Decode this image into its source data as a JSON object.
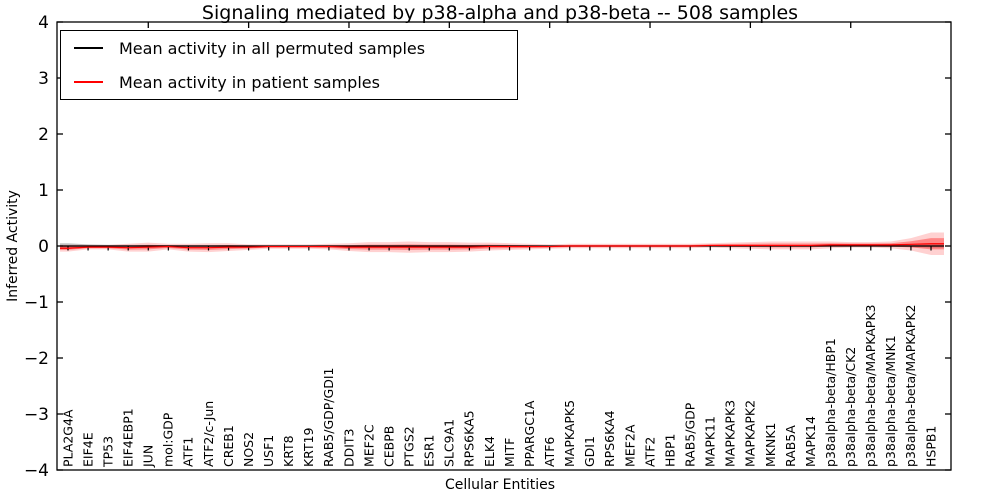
{
  "title": "Signaling mediated by p38-alpha and p38-beta -- 508 samples",
  "xlabel": "Cellular Entities",
  "ylabel": "Inferred Activity",
  "legend": {
    "items": [
      {
        "label": "Mean activity in all permuted samples",
        "color": "#000000"
      },
      {
        "label": "Mean activity in patient samples",
        "color": "#ff0000"
      }
    ]
  },
  "chart_data": {
    "type": "line",
    "title": "Signaling mediated by p38-alpha and p38-beta -- 508 samples",
    "xlabel": "Cellular Entities",
    "ylabel": "Inferred Activity",
    "ylim": [
      -4,
      4
    ],
    "yticks": [
      -4,
      -3,
      -2,
      -1,
      0,
      1,
      2,
      3,
      4
    ],
    "grid": false,
    "legend_position": "upper left",
    "top_tick_indices": [
      4,
      9,
      14,
      19,
      24,
      29,
      34,
      39
    ],
    "categories": [
      "PLA2G4A",
      "EIF4E",
      "TP53",
      "EIF4EBP1",
      "JUN",
      "mol:GDP",
      "ATF1",
      "ATF2/c-Jun",
      "CREB1",
      "NOS2",
      "USF1",
      "KRT8",
      "KRT19",
      "RAB5/GDP/GDI1",
      "DDIT3",
      "MEF2C",
      "CEBPB",
      "PTGS2",
      "ESR1",
      "SLC9A1",
      "RPS6KA5",
      "ELK4",
      "MITF",
      "PPARGC1A",
      "ATF6",
      "MAPKAPK5",
      "GDI1",
      "RPS6KA4",
      "MEF2A",
      "ATF2",
      "HBP1",
      "RAB5/GDP",
      "MAPK11",
      "MAPKAPK3",
      "MAPKAPK2",
      "MKNK1",
      "RAB5A",
      "MAPK14",
      "p38alpha-beta/HBP1",
      "p38alpha-beta/CK2",
      "p38alpha-beta/MAPKAPK3",
      "p38alpha-beta/MNK1",
      "p38alpha-beta/MAPKAPK2",
      "HSPB1"
    ],
    "series": [
      {
        "name": "Mean activity in all permuted samples",
        "color": "#000000",
        "band_color": "rgba(90,90,90,0.35)",
        "values": [
          0,
          0,
          0,
          0,
          0,
          0,
          0,
          0,
          0,
          0,
          0,
          0,
          0,
          0,
          0,
          0,
          0,
          0,
          0,
          0,
          0,
          0,
          0,
          0,
          0,
          0,
          0,
          0,
          0,
          0,
          0,
          0,
          0,
          0,
          0,
          0,
          0,
          0,
          0,
          0,
          0,
          0,
          0,
          0
        ],
        "band": [
          0.05,
          0.03,
          0.02,
          0.02,
          0.02,
          0.015,
          0.015,
          0.015,
          0.015,
          0.015,
          0.01,
          0.01,
          0.01,
          0.01,
          0.01,
          0.015,
          0.015,
          0.015,
          0.015,
          0.015,
          0.015,
          0.015,
          0.015,
          0.01,
          0.01,
          0.01,
          0.01,
          0.01,
          0.01,
          0.01,
          0.01,
          0.01,
          0.01,
          0.01,
          0.01,
          0.01,
          0.01,
          0.01,
          0.01,
          0.01,
          0.01,
          0.015,
          0.02,
          0.03
        ]
      },
      {
        "name": "Mean activity in patient samples",
        "color": "#ff0000",
        "band_color_outer": "rgba(255,0,0,0.18)",
        "band_color_inner": "rgba(255,0,0,0.35)",
        "values": [
          -0.04,
          -0.02,
          -0.02,
          -0.03,
          -0.02,
          -0.01,
          -0.03,
          -0.03,
          -0.02,
          -0.02,
          -0.01,
          -0.01,
          -0.01,
          -0.01,
          -0.02,
          -0.02,
          -0.02,
          -0.02,
          -0.02,
          -0.02,
          -0.02,
          -0.01,
          -0.01,
          -0.01,
          -0.01,
          0,
          0,
          0,
          0,
          0,
          0,
          0,
          0.01,
          0.01,
          0.01,
          0.01,
          0.01,
          0.01,
          0.02,
          0.02,
          0.02,
          0.02,
          0.03,
          0.04
        ],
        "band": [
          0.06,
          0.04,
          0.04,
          0.07,
          0.08,
          0.05,
          0.07,
          0.08,
          0.07,
          0.05,
          0.04,
          0.04,
          0.04,
          0.05,
          0.07,
          0.09,
          0.09,
          0.1,
          0.09,
          0.09,
          0.08,
          0.07,
          0.06,
          0.05,
          0.04,
          0.04,
          0.04,
          0.04,
          0.04,
          0.04,
          0.04,
          0.04,
          0.04,
          0.05,
          0.06,
          0.07,
          0.07,
          0.07,
          0.06,
          0.05,
          0.05,
          0.06,
          0.11,
          0.2
        ]
      }
    ]
  }
}
